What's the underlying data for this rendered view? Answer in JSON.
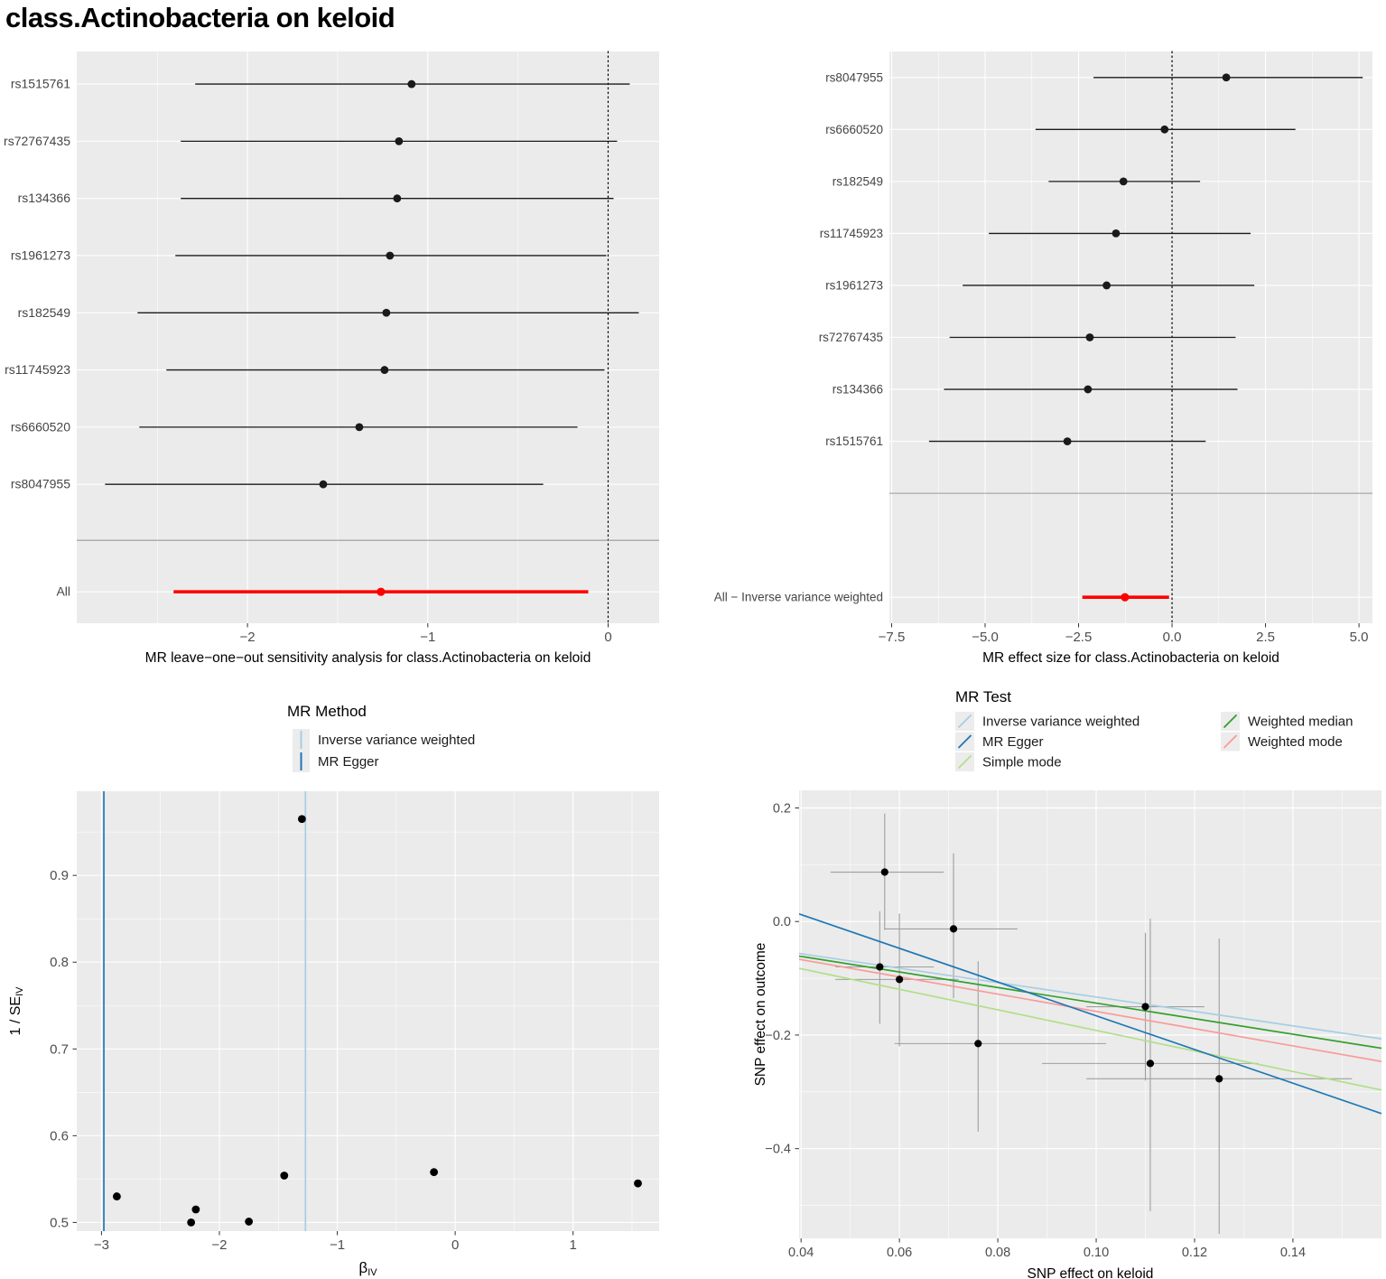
{
  "title": "class.Actinobacteria on keloid",
  "colors": {
    "panel_bg": "#ebebeb",
    "grid": "#ffffff",
    "point": "#000000",
    "ci_line": "#1a1a1a",
    "all_row": "#ff0000",
    "separator": "#9a9a9a",
    "tick_label": "#4d4d4d",
    "axis_title": "#000000",
    "errorbar": "#9e9e9e",
    "legend_key_bg": "#ececec",
    "ivw": "#a6cee3",
    "egger": "#1f78b4",
    "simple_mode": "#b2df8a",
    "weighted_median": "#33a02c",
    "weighted_mode": "#fb9a99"
  },
  "chart_data": [
    {
      "id": "leave-one-out-forest",
      "type": "forest",
      "xlabel": "MR leave−one−out sensitivity analysis for class.Actinobacteria on keloid",
      "xlim": [
        -2.947,
        0.283
      ],
      "xticks": [
        -2,
        -1,
        0
      ],
      "xtick_labels": [
        "−2",
        "−1",
        "0"
      ],
      "xminor": [
        -2.5,
        -1.5,
        -0.5
      ],
      "zero_line": 0,
      "rows": [
        {
          "label": "rs1515761",
          "est": -1.09,
          "lo": -2.29,
          "hi": 0.12,
          "is_all": false
        },
        {
          "label": "rs72767435",
          "est": -1.16,
          "lo": -2.37,
          "hi": 0.05,
          "is_all": false
        },
        {
          "label": "rs134366",
          "est": -1.17,
          "lo": -2.37,
          "hi": 0.03,
          "is_all": false
        },
        {
          "label": "rs1961273",
          "est": -1.21,
          "lo": -2.4,
          "hi": -0.01,
          "is_all": false
        },
        {
          "label": "rs182549",
          "est": -1.23,
          "lo": -2.61,
          "hi": 0.17,
          "is_all": false
        },
        {
          "label": "rs11745923",
          "est": -1.24,
          "lo": -2.45,
          "hi": -0.02,
          "is_all": false
        },
        {
          "label": "rs6660520",
          "est": -1.38,
          "lo": -2.6,
          "hi": -0.17,
          "is_all": false
        },
        {
          "label": "rs8047955",
          "est": -1.58,
          "lo": -2.79,
          "hi": -0.36,
          "is_all": false
        },
        {
          "label": "All",
          "est": -1.26,
          "lo": -2.41,
          "hi": -0.11,
          "is_all": true
        }
      ]
    },
    {
      "id": "effect-size-forest",
      "type": "forest",
      "xlabel": "MR effect size for class.Actinobacteria on keloid",
      "xlim": [
        -7.56,
        5.36
      ],
      "xticks": [
        -7.5,
        -5.0,
        -2.5,
        0.0,
        2.5,
        5.0
      ],
      "xtick_labels": [
        "−7.5",
        "−5.0",
        "−2.5",
        "0.0",
        "2.5",
        "5.0"
      ],
      "xminor": [
        -6.25,
        -3.75,
        -1.25,
        1.25,
        3.75
      ],
      "zero_line": 0,
      "rows": [
        {
          "label": "rs8047955",
          "est": 1.45,
          "lo": -2.1,
          "hi": 5.1,
          "is_all": false
        },
        {
          "label": "rs6660520",
          "est": -0.2,
          "lo": -3.65,
          "hi": 3.3,
          "is_all": false
        },
        {
          "label": "rs182549",
          "est": -1.3,
          "lo": -3.3,
          "hi": 0.75,
          "is_all": false
        },
        {
          "label": "rs11745923",
          "est": -1.5,
          "lo": -4.9,
          "hi": 2.1,
          "is_all": false
        },
        {
          "label": "rs1961273",
          "est": -1.75,
          "lo": -5.6,
          "hi": 2.2,
          "is_all": false
        },
        {
          "label": "rs72767435",
          "est": -2.2,
          "lo": -5.95,
          "hi": 1.7,
          "is_all": false
        },
        {
          "label": "rs134366",
          "est": -2.25,
          "lo": -6.1,
          "hi": 1.75,
          "is_all": false
        },
        {
          "label": "rs1515761",
          "est": -2.8,
          "lo": -6.5,
          "hi": 0.9,
          "is_all": false
        },
        {
          "label": "All − Inverse variance weighted",
          "est": -1.26,
          "lo": -2.4,
          "hi": -0.08,
          "is_all": true
        }
      ]
    },
    {
      "id": "funnel",
      "type": "funnel",
      "legend": {
        "title": "MR Method",
        "items": [
          {
            "label": "Inverse variance weighted",
            "color_key": "ivw"
          },
          {
            "label": "MR Egger",
            "color_key": "egger"
          }
        ]
      },
      "xlabel_base": "β",
      "xlabel_sub": "IV",
      "ylabel_base": "1 / SE",
      "ylabel_sub": "IV",
      "xlim": [
        -3.21,
        1.73
      ],
      "ylim": [
        0.49,
        0.997
      ],
      "xticks": [
        -3,
        -2,
        -1,
        0,
        1
      ],
      "xtick_labels": [
        "−3",
        "−2",
        "−1",
        "0",
        "1"
      ],
      "xminor": [
        -2.5,
        -1.5,
        -0.5,
        0.5,
        1.5
      ],
      "yticks": [
        0.5,
        0.6,
        0.7,
        0.8,
        0.9
      ],
      "ytick_labels": [
        "0.5",
        "0.6",
        "0.7",
        "0.8",
        "0.9"
      ],
      "yminor": [
        0.55,
        0.65,
        0.75,
        0.85,
        0.95
      ],
      "points": [
        {
          "x": -1.3,
          "y": 0.965
        },
        {
          "x": -2.87,
          "y": 0.53
        },
        {
          "x": -2.24,
          "y": 0.5
        },
        {
          "x": -2.2,
          "y": 0.515
        },
        {
          "x": -1.75,
          "y": 0.501
        },
        {
          "x": -1.45,
          "y": 0.554
        },
        {
          "x": -0.18,
          "y": 0.558
        },
        {
          "x": 1.55,
          "y": 0.545
        }
      ],
      "vlines": [
        {
          "name": "MR Egger",
          "x": -2.98,
          "color_key": "egger"
        },
        {
          "name": "Inverse variance weighted",
          "x": -1.27,
          "color_key": "ivw"
        }
      ]
    },
    {
      "id": "scatter",
      "type": "scatter",
      "legend": {
        "title": "MR Test",
        "columns": [
          [
            {
              "label": "Inverse variance weighted",
              "color_key": "ivw"
            },
            {
              "label": "MR Egger",
              "color_key": "egger"
            },
            {
              "label": "Simple mode",
              "color_key": "simple_mode"
            }
          ],
          [
            {
              "label": "Weighted median",
              "color_key": "weighted_median"
            },
            {
              "label": "Weighted mode",
              "color_key": "weighted_mode"
            }
          ]
        ]
      },
      "xlabel": "SNP effect on keloid",
      "ylabel": "SNP effect on outcome",
      "xlim": [
        0.0396,
        0.158
      ],
      "ylim": [
        -0.558,
        0.231
      ],
      "xticks": [
        0.04,
        0.06,
        0.08,
        0.1,
        0.12,
        0.14
      ],
      "xtick_labels": [
        "0.04",
        "0.06",
        "0.08",
        "0.10",
        "0.12",
        "0.14"
      ],
      "xminor": [
        0.05,
        0.07,
        0.09,
        0.11,
        0.13,
        0.15
      ],
      "yticks": [
        0.2,
        0.0,
        -0.2,
        -0.4
      ],
      "ytick_labels": [
        "0.2",
        "0.0",
        "−0.2",
        "−0.4"
      ],
      "yminor": [
        0.1,
        -0.1,
        -0.3,
        -0.5
      ],
      "points": [
        {
          "x": 0.057,
          "y": 0.087,
          "xlo": 0.046,
          "xhi": 0.069,
          "ylo": -0.015,
          "yhi": 0.19
        },
        {
          "x": 0.071,
          "y": -0.013,
          "xlo": 0.057,
          "xhi": 0.084,
          "ylo": -0.135,
          "yhi": 0.12
        },
        {
          "x": 0.056,
          "y": -0.08,
          "xlo": 0.047,
          "xhi": 0.067,
          "ylo": -0.18,
          "yhi": 0.018
        },
        {
          "x": 0.06,
          "y": -0.102,
          "xlo": 0.047,
          "xhi": 0.072,
          "ylo": -0.22,
          "yhi": 0.014
        },
        {
          "x": 0.076,
          "y": -0.215,
          "xlo": 0.059,
          "xhi": 0.102,
          "ylo": -0.37,
          "yhi": -0.07
        },
        {
          "x": 0.11,
          "y": -0.15,
          "xlo": 0.098,
          "xhi": 0.122,
          "ylo": -0.28,
          "yhi": -0.02
        },
        {
          "x": 0.111,
          "y": -0.25,
          "xlo": 0.089,
          "xhi": 0.133,
          "ylo": -0.51,
          "yhi": 0.005
        },
        {
          "x": 0.125,
          "y": -0.277,
          "xlo": 0.098,
          "xhi": 0.152,
          "ylo": -0.55,
          "yhi": -0.03
        }
      ],
      "lines": [
        {
          "name": "Inverse variance weighted",
          "intercept": -0.006,
          "slope": -1.27,
          "color_key": "ivw"
        },
        {
          "name": "Simple mode",
          "intercept": -0.0108,
          "slope": -1.81,
          "color_key": "simple_mode"
        },
        {
          "name": "Weighted median",
          "intercept": -0.0067,
          "slope": -1.37,
          "color_key": "weighted_median"
        },
        {
          "name": "Weighted mode",
          "intercept": -0.0063,
          "slope": -1.52,
          "color_key": "weighted_mode"
        },
        {
          "name": "MR Egger",
          "intercept": 0.131,
          "slope": -2.97,
          "color_key": "egger"
        }
      ]
    }
  ]
}
